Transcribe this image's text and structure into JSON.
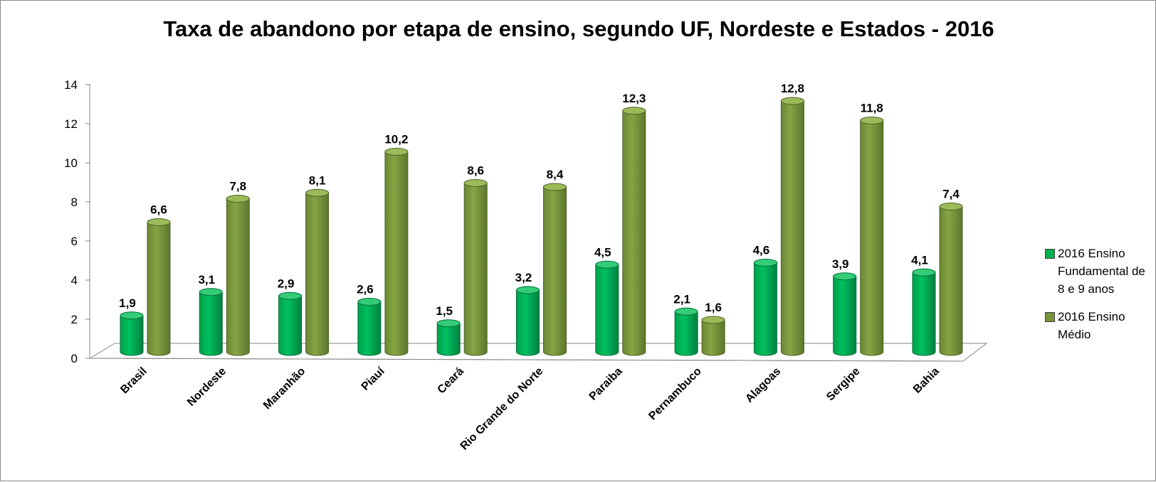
{
  "chart_data": {
    "type": "bar",
    "title": "Taxa de abandono por etapa de ensino, segundo UF, Nordeste e Estados - 2016",
    "categories": [
      "Brasil",
      "Nordeste",
      "Maranhão",
      "Piauí",
      "Ceará",
      "Rio Grande do Norte",
      "Paraiba",
      "Pernambuco",
      "Alagoas",
      "Sergipe",
      "Bahia"
    ],
    "series": [
      {
        "name": "2016 Ensino Fundamental de 8 e 9 anos",
        "color": "#00b050",
        "values": [
          1.9,
          3.1,
          2.9,
          2.6,
          1.5,
          3.2,
          4.5,
          2.1,
          4.6,
          3.9,
          4.1
        ]
      },
      {
        "name": "2016 Ensino Médio",
        "color": "#77933c",
        "values": [
          6.6,
          7.8,
          8.1,
          10.2,
          8.6,
          8.4,
          12.3,
          1.6,
          12.8,
          11.8,
          7.4
        ]
      }
    ],
    "yticks": [
      0,
      2,
      4,
      6,
      8,
      10,
      12,
      14
    ],
    "ylim": [
      0,
      14
    ],
    "legend": "right",
    "grid": false
  }
}
